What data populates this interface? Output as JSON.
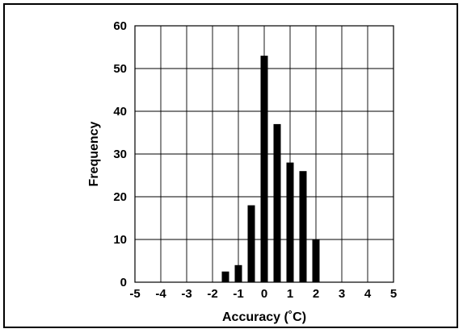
{
  "chart_data": {
    "type": "bar",
    "title": "",
    "xlabel": "Accuracy (˚C)",
    "ylabel": "Frequency",
    "xlim": [
      -5,
      5
    ],
    "ylim": [
      0,
      60
    ],
    "grid": true,
    "x_ticks": [
      "-5",
      "-4",
      "-3",
      "-2",
      "-1",
      "0",
      "1",
      "2",
      "3",
      "4",
      "5"
    ],
    "y_ticks": [
      "0",
      "10",
      "20",
      "30",
      "40",
      "50",
      "60"
    ],
    "x": [
      -1.5,
      -1.0,
      -0.5,
      0.0,
      0.5,
      1.0,
      1.5,
      2.0
    ],
    "values": [
      2.5,
      4,
      18,
      53,
      37,
      28,
      26,
      10
    ],
    "bar_color": "#000000"
  }
}
